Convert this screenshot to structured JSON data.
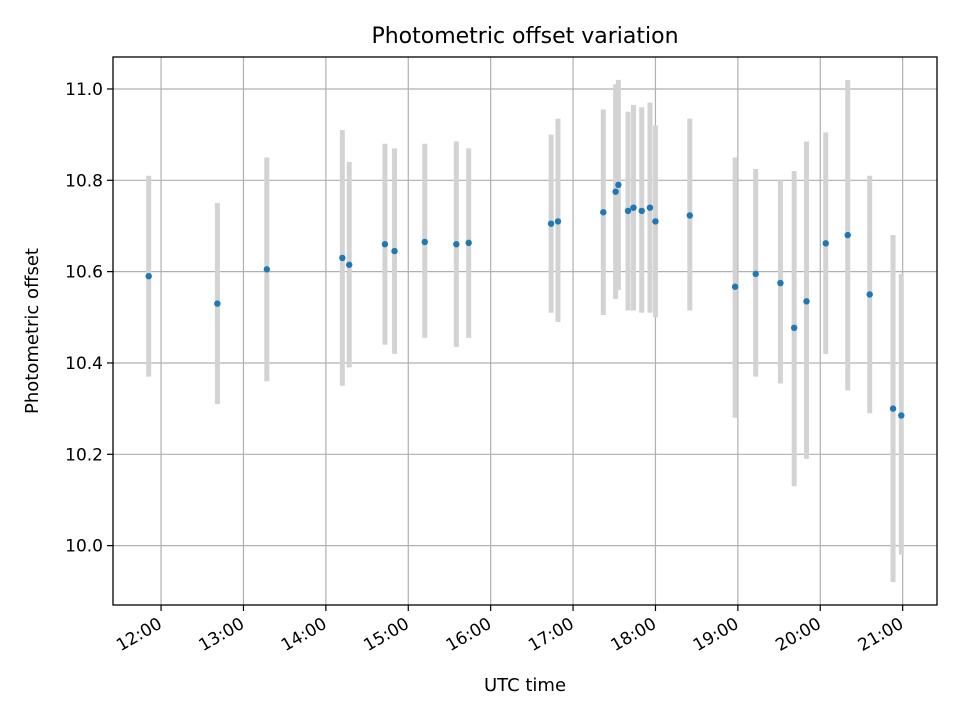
{
  "chart_data": {
    "type": "scatter",
    "title": "Photometric offset variation",
    "xlabel": "UTC time",
    "ylabel": "Photometric offset",
    "x_unit": "hours (UTC)",
    "xlim": [
      "11:25",
      "21:25"
    ],
    "ylim": [
      9.87,
      11.07
    ],
    "grid": true,
    "colors": {
      "points": "#1f77b4",
      "errorbars": "#d3d3d3",
      "grid": "#b0b0b0"
    },
    "x_ticks": [
      {
        "label": "12:00",
        "value": "12:00"
      },
      {
        "label": "13:00",
        "value": "13:00"
      },
      {
        "label": "14:00",
        "value": "14:00"
      },
      {
        "label": "15:00",
        "value": "15:00"
      },
      {
        "label": "16:00",
        "value": "16:00"
      },
      {
        "label": "17:00",
        "value": "17:00"
      },
      {
        "label": "18:00",
        "value": "18:00"
      },
      {
        "label": "19:00",
        "value": "19:00"
      },
      {
        "label": "20:00",
        "value": "20:00"
      },
      {
        "label": "21:00",
        "value": "21:00"
      }
    ],
    "y_ticks": [
      {
        "label": "10.0",
        "value": 10.0
      },
      {
        "label": "10.2",
        "value": 10.2
      },
      {
        "label": "10.4",
        "value": 10.4
      },
      {
        "label": "10.6",
        "value": 10.6
      },
      {
        "label": "10.8",
        "value": 10.8
      },
      {
        "label": "11.0",
        "value": 11.0
      }
    ],
    "points": [
      {
        "x": "11:51",
        "y": 10.59,
        "err_low": 10.37,
        "err_high": 10.81
      },
      {
        "x": "12:41",
        "y": 10.53,
        "err_low": 10.31,
        "err_high": 10.75
      },
      {
        "x": "13:17",
        "y": 10.605,
        "err_low": 10.36,
        "err_high": 10.85
      },
      {
        "x": "14:12",
        "y": 10.63,
        "err_low": 10.35,
        "err_high": 10.91
      },
      {
        "x": "14:17",
        "y": 10.615,
        "err_low": 10.39,
        "err_high": 10.84
      },
      {
        "x": "14:43",
        "y": 10.66,
        "err_low": 10.44,
        "err_high": 10.88
      },
      {
        "x": "14:50",
        "y": 10.645,
        "err_low": 10.42,
        "err_high": 10.87
      },
      {
        "x": "15:12",
        "y": 10.665,
        "err_low": 10.455,
        "err_high": 10.88
      },
      {
        "x": "15:35",
        "y": 10.66,
        "err_low": 10.435,
        "err_high": 10.885
      },
      {
        "x": "15:44",
        "y": 10.663,
        "err_low": 10.455,
        "err_high": 10.87
      },
      {
        "x": "16:44",
        "y": 10.705,
        "err_low": 10.51,
        "err_high": 10.9
      },
      {
        "x": "16:49",
        "y": 10.71,
        "err_low": 10.49,
        "err_high": 10.935
      },
      {
        "x": "17:22",
        "y": 10.73,
        "err_low": 10.505,
        "err_high": 10.955
      },
      {
        "x": "17:31",
        "y": 10.775,
        "err_low": 10.54,
        "err_high": 11.01
      },
      {
        "x": "17:33",
        "y": 10.79,
        "err_low": 10.56,
        "err_high": 11.02
      },
      {
        "x": "17:40",
        "y": 10.733,
        "err_low": 10.515,
        "err_high": 10.95
      },
      {
        "x": "17:44",
        "y": 10.74,
        "err_low": 10.515,
        "err_high": 10.965
      },
      {
        "x": "17:50",
        "y": 10.733,
        "err_low": 10.51,
        "err_high": 10.96
      },
      {
        "x": "17:56",
        "y": 10.74,
        "err_low": 10.51,
        "err_high": 10.97
      },
      {
        "x": "18:00",
        "y": 10.71,
        "err_low": 10.5,
        "err_high": 10.92
      },
      {
        "x": "18:25",
        "y": 10.723,
        "err_low": 10.515,
        "err_high": 10.935
      },
      {
        "x": "18:58",
        "y": 10.567,
        "err_low": 10.28,
        "err_high": 10.85
      },
      {
        "x": "19:13",
        "y": 10.595,
        "err_low": 10.37,
        "err_high": 10.825
      },
      {
        "x": "19:31",
        "y": 10.575,
        "err_low": 10.355,
        "err_high": 10.8
      },
      {
        "x": "19:41",
        "y": 10.477,
        "err_low": 10.13,
        "err_high": 10.82
      },
      {
        "x": "19:50",
        "y": 10.535,
        "err_low": 10.19,
        "err_high": 10.885
      },
      {
        "x": "20:04",
        "y": 10.662,
        "err_low": 10.42,
        "err_high": 10.905
      },
      {
        "x": "20:20",
        "y": 10.68,
        "err_low": 10.34,
        "err_high": 11.02
      },
      {
        "x": "20:36",
        "y": 10.55,
        "err_low": 10.29,
        "err_high": 10.81
      },
      {
        "x": "20:53",
        "y": 10.3,
        "err_low": 9.92,
        "err_high": 10.68
      },
      {
        "x": "20:59",
        "y": 10.285,
        "err_low": 9.98,
        "err_high": 10.595
      }
    ]
  }
}
